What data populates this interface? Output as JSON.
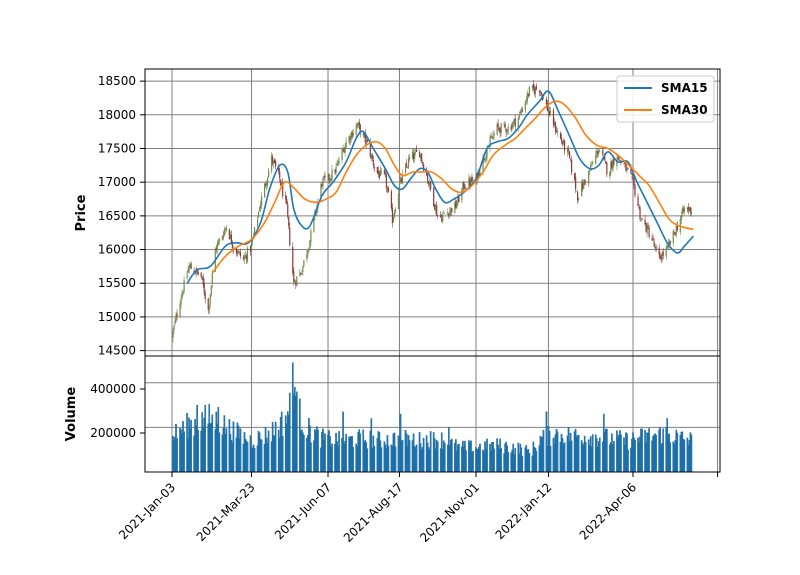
{
  "chart_data": {
    "type": "candlestick",
    "dates": {
      "start": "2021-Jan-03",
      "end": "2022-Jun-05"
    },
    "x_ticks": [
      "2021-Jan-03",
      "2021-Mar-23",
      "2021-Jun-07",
      "2021-Aug-17",
      "2021-Nov-01",
      "2022-Jan-12",
      "2022-Apr-06"
    ],
    "price_panel": {
      "ylabel": "Price",
      "ylim": [
        14420,
        18680
      ],
      "y_ticks": [
        14500,
        15000,
        15500,
        16000,
        16500,
        17000,
        17500,
        18000,
        18500
      ],
      "grid": true,
      "legend_position": "top-right",
      "candle_colors": {
        "up": "#6e8c4a",
        "down": "#8b3a3a"
      },
      "close_anchors": [
        [
          "2021-Jan-03",
          14700
        ],
        [
          "2021-Jan-10",
          15200
        ],
        [
          "2021-Jan-20",
          15750
        ],
        [
          "2021-Feb-01",
          15600
        ],
        [
          "2021-Feb-08",
          15100
        ],
        [
          "2021-Feb-15",
          16000
        ],
        [
          "2021-Feb-26",
          16350
        ],
        [
          "2021-Mar-05",
          16050
        ],
        [
          "2021-Mar-15",
          15850
        ],
        [
          "2021-Mar-23",
          16050
        ],
        [
          "2021-Apr-01",
          16700
        ],
        [
          "2021-Apr-12",
          17350
        ],
        [
          "2021-Apr-20",
          17050
        ],
        [
          "2021-Apr-27",
          16600
        ],
        [
          "2021-May-04",
          15500
        ],
        [
          "2021-May-12",
          15700
        ],
        [
          "2021-May-20",
          16150
        ],
        [
          "2021-Jun-01",
          17000
        ],
        [
          "2021-Jun-07",
          17050
        ],
        [
          "2021-Jun-15",
          17200
        ],
        [
          "2021-Jun-25",
          17600
        ],
        [
          "2021-Jul-06",
          17850
        ],
        [
          "2021-Jul-15",
          17600
        ],
        [
          "2021-Jul-25",
          17150
        ],
        [
          "2021-Aug-03",
          17050
        ],
        [
          "2021-Aug-10",
          16450
        ],
        [
          "2021-Aug-17",
          16950
        ],
        [
          "2021-Aug-27",
          17350
        ],
        [
          "2021-Sep-06",
          17450
        ],
        [
          "2021-Sep-15",
          17000
        ],
        [
          "2021-Sep-25",
          16450
        ],
        [
          "2021-Oct-03",
          16550
        ],
        [
          "2021-Oct-12",
          16650
        ],
        [
          "2021-Oct-20",
          16950
        ],
        [
          "2021-Nov-01",
          17050
        ],
        [
          "2021-Nov-12",
          17500
        ],
        [
          "2021-Nov-22",
          17800
        ],
        [
          "2021-Dec-03",
          17800
        ],
        [
          "2021-Dec-13",
          17950
        ],
        [
          "2021-Dec-24",
          18350
        ],
        [
          "2022-Jan-03",
          18400
        ],
        [
          "2022-Jan-12",
          18050
        ],
        [
          "2022-Jan-22",
          17700
        ],
        [
          "2022-Feb-01",
          17400
        ],
        [
          "2022-Feb-10",
          16800
        ],
        [
          "2022-Feb-20",
          17100
        ],
        [
          "2022-Mar-03",
          17500
        ],
        [
          "2022-Mar-12",
          17150
        ],
        [
          "2022-Mar-20",
          17400
        ],
        [
          "2022-Mar-28",
          17250
        ],
        [
          "2022-Apr-06",
          17000
        ],
        [
          "2022-Apr-14",
          16450
        ],
        [
          "2022-Apr-24",
          16200
        ],
        [
          "2022-May-01",
          15850
        ],
        [
          "2022-May-10",
          16000
        ],
        [
          "2022-May-20",
          16350
        ],
        [
          "2022-May-27",
          16600
        ],
        [
          "2022-Jun-05",
          16600
        ]
      ]
    },
    "series": [
      {
        "name": "SMA15",
        "color": "#1f77b4",
        "points": [
          [
            "2021-Jan-18",
            15500
          ],
          [
            "2021-Jan-28",
            15700
          ],
          [
            "2021-Feb-10",
            15750
          ],
          [
            "2021-Feb-25",
            16050
          ],
          [
            "2021-Mar-08",
            16100
          ],
          [
            "2021-Mar-20",
            16100
          ],
          [
            "2021-Apr-01",
            16400
          ],
          [
            "2021-Apr-10",
            16900
          ],
          [
            "2021-Apr-20",
            17250
          ],
          [
            "2021-Apr-28",
            17150
          ],
          [
            "2021-May-04",
            16600
          ],
          [
            "2021-May-12",
            16350
          ],
          [
            "2021-May-20",
            16350
          ],
          [
            "2021-Jun-01",
            16800
          ],
          [
            "2021-Jun-12",
            17000
          ],
          [
            "2021-Jun-25",
            17300
          ],
          [
            "2021-Jul-05",
            17650
          ],
          [
            "2021-Jul-12",
            17750
          ],
          [
            "2021-Jul-22",
            17500
          ],
          [
            "2021-Aug-03",
            17200
          ],
          [
            "2021-Aug-12",
            16950
          ],
          [
            "2021-Aug-20",
            16900
          ],
          [
            "2021-Aug-28",
            17050
          ],
          [
            "2021-Sep-06",
            17200
          ],
          [
            "2021-Sep-14",
            17150
          ],
          [
            "2021-Sep-22",
            16900
          ],
          [
            "2021-Oct-01",
            16700
          ],
          [
            "2021-Oct-10",
            16750
          ],
          [
            "2021-Oct-20",
            16850
          ],
          [
            "2021-Nov-01",
            17050
          ],
          [
            "2021-Nov-12",
            17500
          ],
          [
            "2021-Nov-22",
            17600
          ],
          [
            "2021-Dec-03",
            17650
          ],
          [
            "2021-Dec-13",
            17800
          ],
          [
            "2021-Dec-22",
            18000
          ],
          [
            "2022-Jan-03",
            18200
          ],
          [
            "2022-Jan-12",
            18350
          ],
          [
            "2022-Jan-22",
            18050
          ],
          [
            "2022-Feb-03",
            17650
          ],
          [
            "2022-Feb-12",
            17350
          ],
          [
            "2022-Feb-22",
            17200
          ],
          [
            "2022-Mar-03",
            17250
          ],
          [
            "2022-Mar-12",
            17450
          ],
          [
            "2022-Mar-22",
            17300
          ],
          [
            "2022-Apr-01",
            17300
          ],
          [
            "2022-Apr-10",
            17000
          ],
          [
            "2022-Apr-20",
            16700
          ],
          [
            "2022-Apr-30",
            16400
          ],
          [
            "2022-May-10",
            16100
          ],
          [
            "2022-May-20",
            15950
          ],
          [
            "2022-May-27",
            16050
          ],
          [
            "2022-Jun-05",
            16200
          ]
        ]
      },
      {
        "name": "SMA30",
        "color": "#ff7f0e",
        "points": [
          [
            "2021-Feb-12",
            15650
          ],
          [
            "2021-Feb-25",
            15900
          ],
          [
            "2021-Mar-10",
            16050
          ],
          [
            "2021-Mar-23",
            16150
          ],
          [
            "2021-Apr-05",
            16400
          ],
          [
            "2021-Apr-15",
            16700
          ],
          [
            "2021-Apr-25",
            17000
          ],
          [
            "2021-May-05",
            16900
          ],
          [
            "2021-May-15",
            16750
          ],
          [
            "2021-May-27",
            16700
          ],
          [
            "2021-Jun-05",
            16750
          ],
          [
            "2021-Jun-15",
            16850
          ],
          [
            "2021-Jun-25",
            17150
          ],
          [
            "2021-Jul-05",
            17400
          ],
          [
            "2021-Jul-15",
            17550
          ],
          [
            "2021-Jul-25",
            17600
          ],
          [
            "2021-Aug-03",
            17500
          ],
          [
            "2021-Aug-12",
            17250
          ],
          [
            "2021-Aug-20",
            17100
          ],
          [
            "2021-Aug-30",
            17150
          ],
          [
            "2021-Sep-08",
            17150
          ],
          [
            "2021-Sep-18",
            17150
          ],
          [
            "2021-Sep-28",
            17050
          ],
          [
            "2021-Oct-08",
            16900
          ],
          [
            "2021-Oct-18",
            16850
          ],
          [
            "2021-Oct-28",
            16950
          ],
          [
            "2021-Nov-08",
            17150
          ],
          [
            "2021-Nov-18",
            17400
          ],
          [
            "2021-Nov-30",
            17550
          ],
          [
            "2021-Dec-10",
            17650
          ],
          [
            "2021-Dec-20",
            17800
          ],
          [
            "2021-Dec-30",
            17950
          ],
          [
            "2022-Jan-08",
            18100
          ],
          [
            "2022-Jan-18",
            18200
          ],
          [
            "2022-Jan-28",
            18150
          ],
          [
            "2022-Feb-08",
            17950
          ],
          [
            "2022-Feb-18",
            17700
          ],
          [
            "2022-Mar-01",
            17550
          ],
          [
            "2022-Mar-12",
            17500
          ],
          [
            "2022-Mar-22",
            17400
          ],
          [
            "2022-Apr-02",
            17250
          ],
          [
            "2022-Apr-12",
            17100
          ],
          [
            "2022-Apr-22",
            16950
          ],
          [
            "2022-May-02",
            16700
          ],
          [
            "2022-May-12",
            16450
          ],
          [
            "2022-May-22",
            16350
          ],
          [
            "2022-Jun-05",
            16300
          ]
        ]
      }
    ],
    "volume_panel": {
      "ylabel": "Volume",
      "ylim": [
        0,
        520000
      ],
      "y_ticks": [
        200000,
        400000
      ],
      "tick_labels": [
        "200000",
        "400000"
      ],
      "bar_color": "#1f77b4",
      "grid": true,
      "volume_anchors": [
        [
          "2021-Jan-03",
          160000
        ],
        [
          "2021-Jan-20",
          210000
        ],
        [
          "2021-Feb-08",
          240000
        ],
        [
          "2021-Feb-20",
          220000
        ],
        [
          "2021-Mar-05",
          180000
        ],
        [
          "2021-Mar-23",
          140000
        ],
        [
          "2021-Apr-10",
          170000
        ],
        [
          "2021-Apr-25",
          230000
        ],
        [
          "2021-May-04",
          330000
        ],
        [
          "2021-May-15",
          200000
        ],
        [
          "2021-Jun-01",
          150000
        ],
        [
          "2021-Jun-20",
          140000
        ],
        [
          "2021-Jul-10",
          150000
        ],
        [
          "2021-Aug-01",
          140000
        ],
        [
          "2021-Aug-17",
          150000
        ],
        [
          "2021-Sep-05",
          140000
        ],
        [
          "2021-Sep-25",
          150000
        ],
        [
          "2021-Oct-15",
          110000
        ],
        [
          "2021-Nov-01",
          110000
        ],
        [
          "2021-Nov-20",
          120000
        ],
        [
          "2021-Dec-10",
          110000
        ],
        [
          "2021-Dec-25",
          90000
        ],
        [
          "2022-Jan-05",
          150000
        ],
        [
          "2022-Jan-20",
          170000
        ],
        [
          "2022-Feb-05",
          160000
        ],
        [
          "2022-Feb-25",
          160000
        ],
        [
          "2022-Mar-15",
          150000
        ],
        [
          "2022-Apr-01",
          140000
        ],
        [
          "2022-Apr-20",
          160000
        ],
        [
          "2022-May-08",
          170000
        ],
        [
          "2022-May-25",
          150000
        ],
        [
          "2022-Jun-05",
          140000
        ]
      ],
      "spikes": [
        [
          "2021-May-03",
          490000
        ],
        [
          "2021-May-05",
          380000
        ],
        [
          "2021-May-06",
          340000
        ],
        [
          "2021-Jan-28",
          300000
        ],
        [
          "2021-Feb-18",
          290000
        ],
        [
          "2021-Jun-22",
          270000
        ],
        [
          "2021-Aug-18",
          260000
        ],
        [
          "2022-Jan-10",
          270000
        ],
        [
          "2022-Mar-08",
          260000
        ],
        [
          "2022-May-10",
          240000
        ],
        [
          "2021-Jul-20",
          240000
        ],
        [
          "2021-Oct-05",
          200000
        ]
      ]
    }
  }
}
